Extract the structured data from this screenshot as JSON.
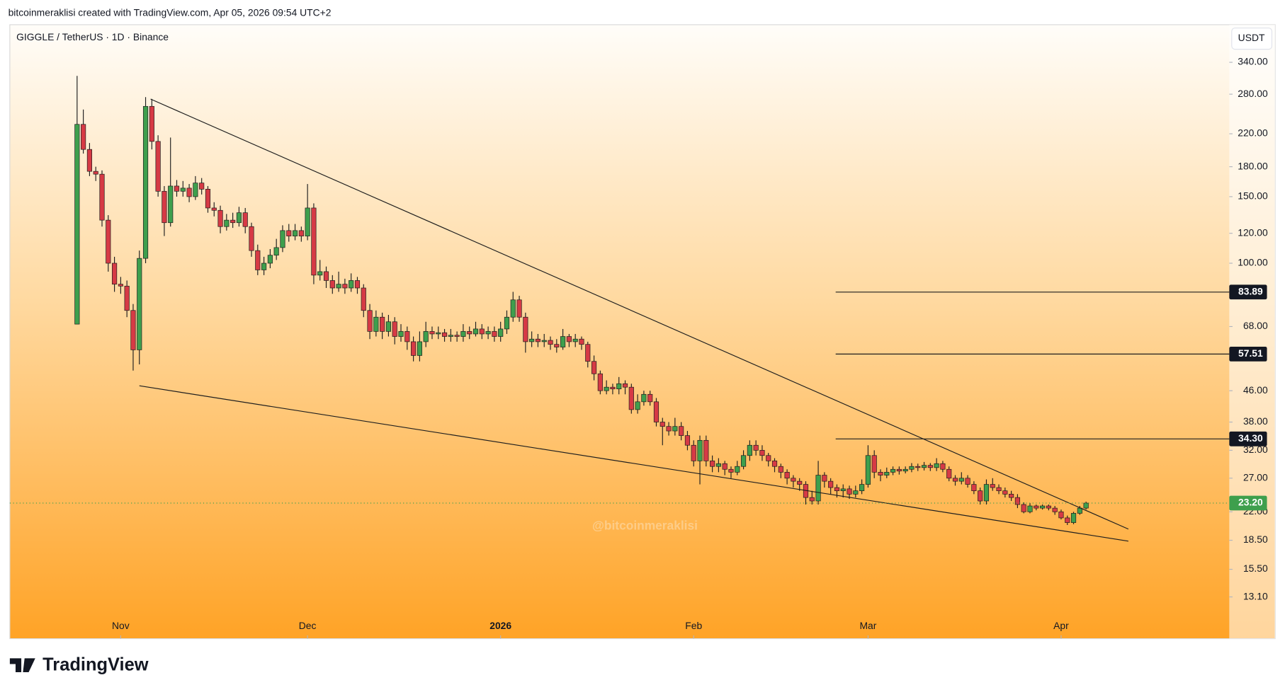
{
  "chart_data": {
    "type": "candlestick",
    "header": "bitcoinmeraklisi created with TradingView.com, Apr 05, 2026 09:54 UTC+2",
    "title": "GIGGLE / TetherUS · 1D · Binance",
    "y_axis_label": "USDT",
    "watermark": "@bitcoinmeraklisi",
    "brand": "TradingView",
    "up_color": "#3e9f4d",
    "down_color": "#d63a45",
    "line_color": "#1e1e1e",
    "log_scale": true,
    "xlim": [
      -10.8,
      185
    ],
    "xticks": [
      {
        "value": 7,
        "label": "Nov"
      },
      {
        "value": 37,
        "label": "Dec"
      },
      {
        "value": 68,
        "label": "2026"
      },
      {
        "value": 99,
        "label": "Feb"
      },
      {
        "value": 127,
        "label": "Mar"
      },
      {
        "value": 158,
        "label": "Apr"
      }
    ],
    "ylim": [
      10.16,
      427.5
    ],
    "yticks": [
      {
        "value": 340,
        "label": "340.00"
      },
      {
        "value": 280,
        "label": "280.00"
      },
      {
        "value": 220,
        "label": "220.00"
      },
      {
        "value": 180,
        "label": "180.00"
      },
      {
        "value": 150,
        "label": "150.00"
      },
      {
        "value": 120,
        "label": "120.00"
      },
      {
        "value": 100,
        "label": "100.00"
      },
      {
        "value": 68,
        "label": "68.00"
      },
      {
        "value": 46,
        "label": "46.00"
      },
      {
        "value": 38,
        "label": "38.00"
      },
      {
        "value": 32,
        "label": "32.00"
      },
      {
        "value": 27,
        "label": "27.00"
      },
      {
        "value": 22,
        "label": "22.00"
      },
      {
        "value": 18.5,
        "label": "18.50"
      },
      {
        "value": 15.5,
        "label": "15.50"
      },
      {
        "value": 13.1,
        "label": "13.10"
      }
    ],
    "open": [
      69,
      233,
      200,
      175,
      172,
      130,
      100,
      88,
      87,
      75,
      59,
      103,
      260,
      210,
      155,
      128,
      160,
      155,
      158,
      150,
      163,
      157,
      140,
      138,
      125,
      130,
      128,
      136,
      125,
      108,
      96,
      100,
      105,
      110,
      122,
      118,
      122,
      118,
      140,
      93,
      95,
      90,
      86,
      88,
      86,
      90,
      86,
      75,
      66,
      72,
      66,
      70,
      64,
      66,
      62,
      57,
      62,
      66,
      65,
      65.5,
      64,
      64.5,
      64,
      66,
      65,
      67,
      65,
      66,
      64,
      67,
      72,
      80,
      72,
      62,
      63,
      62,
      62.5,
      61,
      60,
      64,
      62,
      63,
      61,
      55,
      51,
      46,
      47,
      46.5,
      48,
      47,
      41,
      43,
      45,
      43,
      38,
      37,
      36,
      37,
      35,
      33,
      30,
      34,
      30,
      29,
      29.5,
      28.5,
      28,
      29,
      31,
      33,
      32,
      31,
      30,
      29,
      28,
      27,
      26.5,
      26,
      24,
      23.5,
      27.5,
      26.5,
      25.5,
      25,
      25.3,
      24.5,
      25,
      26,
      31,
      28,
      27.5,
      28,
      28.5,
      28.2,
      28.5,
      29,
      28.8,
      29.2,
      28.8,
      29.5,
      28.5,
      27,
      26.5,
      27,
      26,
      25,
      23.5,
      26,
      25.5,
      25,
      24.5,
      24,
      23,
      22,
      22.8,
      22.5,
      22.8,
      22.5,
      22,
      21.2,
      20.6,
      21.8,
      22.5
    ],
    "high": [
      313,
      255,
      208,
      180,
      176,
      134,
      104,
      92,
      90,
      78,
      108,
      275,
      272,
      218,
      160,
      215,
      166,
      165,
      162,
      170,
      168,
      160,
      145,
      142,
      135,
      136,
      141,
      140,
      128,
      112,
      104,
      109,
      116,
      126,
      127,
      127,
      125,
      162,
      144,
      102,
      98,
      93,
      95,
      91,
      94,
      92,
      88,
      78,
      75,
      74,
      73,
      72,
      69,
      68,
      64,
      66,
      70,
      68,
      68,
      67,
      67,
      66,
      69,
      68,
      70,
      69,
      68,
      68,
      70,
      75,
      84,
      82,
      74,
      66,
      65,
      65,
      64,
      63,
      67,
      65,
      65,
      64,
      62,
      57,
      52,
      49,
      48,
      50,
      49,
      48,
      45,
      46,
      46,
      44,
      39,
      38,
      39,
      38,
      36,
      34,
      35,
      35,
      31,
      30.5,
      30,
      29,
      30,
      32,
      34,
      34,
      33,
      31.5,
      30.5,
      29.5,
      28.5,
      27.5,
      27,
      26.5,
      25,
      30,
      28,
      27,
      26,
      26,
      25.8,
      25.8,
      26.8,
      33,
      32,
      28.5,
      28.8,
      29,
      29,
      29,
      29.6,
      29.5,
      29.8,
      29.6,
      30.5,
      30,
      29,
      27.5,
      28,
      27.5,
      26.5,
      25.5,
      26.8,
      27,
      26,
      25.5,
      25,
      24.5,
      23.3,
      23.2,
      23,
      23,
      23,
      22.8,
      22.3,
      21.5,
      22,
      22.8,
      23.4
    ],
    "low": [
      69,
      195,
      170,
      165,
      125,
      95,
      84,
      83,
      72,
      52,
      54,
      100,
      200,
      150,
      118,
      125,
      150,
      150,
      145,
      147,
      152,
      136,
      133,
      120,
      122,
      124,
      125,
      120,
      104,
      93,
      93,
      97,
      102,
      107,
      114,
      115,
      114,
      115,
      88,
      90,
      86,
      83,
      84,
      83,
      84,
      83,
      72,
      63,
      64,
      63,
      64,
      61,
      62,
      59,
      55,
      55,
      60,
      63,
      63,
      62,
      62,
      62,
      62,
      63,
      64,
      63,
      63,
      62,
      62,
      65,
      70,
      70,
      58,
      60,
      60,
      60,
      59,
      58,
      59,
      60,
      60,
      59,
      53,
      49,
      45,
      45,
      45,
      45,
      45,
      40,
      40,
      42,
      42,
      37,
      33,
      35,
      35,
      34,
      32,
      29,
      26,
      29,
      28,
      28,
      27.5,
      27,
      27.5,
      28.5,
      30,
      31,
      30,
      29,
      28,
      27,
      26,
      25.5,
      25,
      23,
      23,
      23,
      25.5,
      24.5,
      24,
      24,
      23.8,
      24,
      24.5,
      25.5,
      27,
      26.5,
      27,
      27.5,
      27.6,
      27.8,
      28,
      28.2,
      28.3,
      28.2,
      28.2,
      28,
      26.5,
      25.8,
      26,
      25.5,
      24.5,
      23,
      23,
      25,
      24.5,
      24,
      23.5,
      22.5,
      21.8,
      21.8,
      22.2,
      22.3,
      22.2,
      21.6,
      21,
      20.3,
      20.4,
      21.6,
      22.3
    ],
    "close": [
      233,
      200,
      175,
      172,
      130,
      100,
      88,
      87,
      75,
      59,
      103,
      260,
      210,
      155,
      128,
      160,
      155,
      158,
      150,
      163,
      157,
      140,
      138,
      125,
      130,
      128,
      136,
      125,
      108,
      96,
      100,
      105,
      110,
      122,
      118,
      122,
      118,
      140,
      93,
      95,
      90,
      86,
      88,
      86,
      90,
      86,
      75,
      66,
      72,
      66,
      70,
      64,
      66,
      62,
      57,
      62,
      66,
      65,
      65.5,
      64,
      64.5,
      64,
      66,
      65,
      67,
      65,
      66,
      64,
      67,
      72,
      80,
      72,
      62,
      63,
      62,
      62.5,
      61,
      60,
      64,
      62,
      63,
      61,
      55,
      51,
      46,
      47,
      46.5,
      48,
      47,
      41,
      43,
      45,
      43,
      38,
      37,
      36,
      37,
      35,
      33,
      30,
      34,
      30,
      29,
      29.5,
      28.5,
      28,
      29,
      31,
      33,
      32,
      31,
      30,
      29,
      28,
      27,
      26.5,
      26,
      24,
      23.5,
      27.5,
      26.5,
      25.5,
      25,
      25.3,
      24.5,
      25,
      26,
      31,
      28,
      27.5,
      28,
      28.5,
      28.2,
      28.5,
      29,
      28.8,
      29.2,
      28.8,
      29.5,
      28.5,
      27,
      26.5,
      27,
      26,
      25,
      23.5,
      26,
      25.5,
      25,
      24.5,
      24,
      23,
      22,
      22.8,
      22.5,
      22.8,
      22.5,
      22,
      21.2,
      20.6,
      21.8,
      22.5,
      23.2
    ],
    "trendlines": [
      {
        "points": [
          [
            11.8,
            271.8
          ],
          [
            168.8,
            19.8
          ]
        ]
      },
      {
        "points": [
          [
            10,
            47.4
          ],
          [
            168.8,
            18.4
          ]
        ]
      }
    ],
    "level_start": 121.8,
    "levels": [
      83.89,
      57.51,
      {
        "value": 34.3,
        "label": "34.30"
      }
    ],
    "last_price": {
      "value": 23.2,
      "label": "23.20"
    }
  }
}
